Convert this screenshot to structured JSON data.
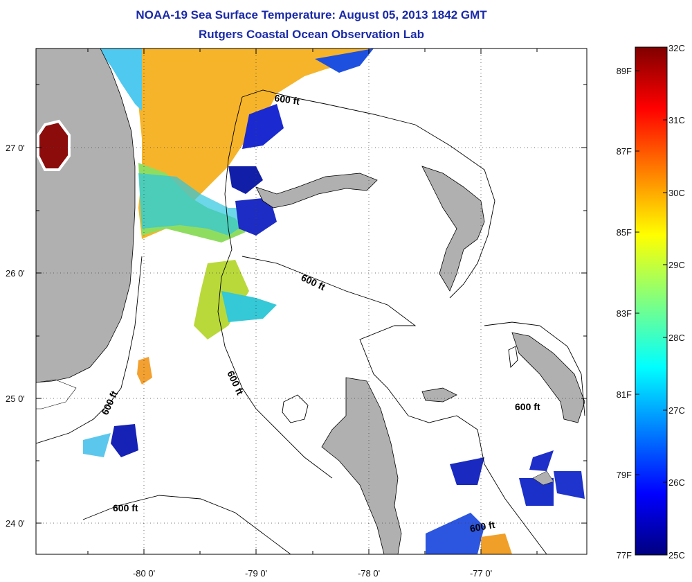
{
  "header": {
    "title": "NOAA-19 Sea Surface Temperature:  August 05, 2013 1842 GMT",
    "subtitle": "Rutgers Coastal Ocean Observation Lab"
  },
  "axes": {
    "lat_ticks": [
      "27 0'",
      "26 0'",
      "25 0'",
      "24 0'"
    ],
    "lon_ticks": [
      "-80 0'",
      "-79 0'",
      "-78 0'",
      "-77 0'"
    ],
    "lat_range": [
      23.7,
      27.8
    ],
    "lon_range": [
      -80.9,
      -76.0
    ],
    "grid": "dotted"
  },
  "contours": {
    "labels": [
      "600 ft",
      "600 ft",
      "600 ft",
      "600 ft",
      "600 ft",
      "600 ft",
      "600 ft"
    ]
  },
  "colorbar": {
    "celsius": [
      "32C",
      "31C",
      "30C",
      "29C",
      "28C",
      "27C",
      "26C",
      "25C"
    ],
    "fahrenheit": [
      "89F",
      "87F",
      "85F",
      "83F",
      "81F",
      "79F",
      "77F"
    ],
    "range_c": [
      25,
      32
    ],
    "colormap": "jet"
  },
  "colors": {
    "land": "#b0b0b0",
    "title": "#1a2aa8"
  }
}
